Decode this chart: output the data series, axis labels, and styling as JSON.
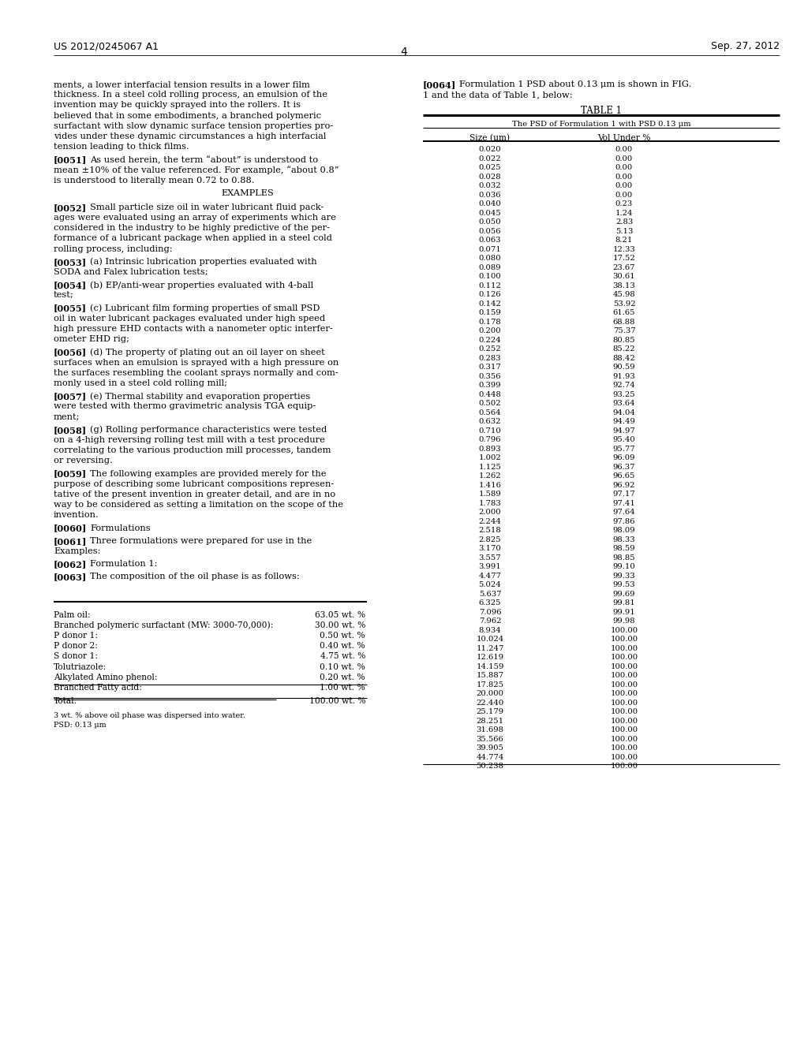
{
  "page_number": "4",
  "patent_number": "US 2012/0245067 A1",
  "patent_date": "Sep. 27, 2012",
  "left_paragraphs": [
    {
      "type": "body",
      "text": "ments, a lower interfacial tension results in a lower film\nthickness. In a steel cold rolling process, an emulsion of the\ninvention may be quickly sprayed into the rollers. It is\nbelieved that in some embodiments, a branched polymeric\nsurfactant with slow dynamic surface tension properties pro-\nvides under these dynamic circumstances a high interfacial\ntension leading to thick films."
    },
    {
      "type": "para",
      "num": "[0051]",
      "text": "As used herein, the term “about” is understood to\nmean ±10% of the value referenced. For example, “about 0.8”\nis understood to literally mean 0.72 to 0.88."
    },
    {
      "type": "center",
      "text": "EXAMPLES"
    },
    {
      "type": "para",
      "num": "[0052]",
      "text": "Small particle size oil in water lubricant fluid pack-\nages were evaluated using an array of experiments which are\nconsidered in the industry to be highly predictive of the per-\nformance of a lubricant package when applied in a steel cold\nrolling process, including:"
    },
    {
      "type": "para",
      "num": "[0053]",
      "text": "(a) Intrinsic lubrication properties evaluated with\nSODA and Falex lubrication tests;"
    },
    {
      "type": "para",
      "num": "[0054]",
      "text": "(b) EP/anti-wear properties evaluated with 4-ball\ntest;"
    },
    {
      "type": "para",
      "num": "[0055]",
      "text": "(c) Lubricant film forming properties of small PSD\noil in water lubricant packages evaluated under high speed\nhigh pressure EHD contacts with a nanometer optic interfer-\nometer EHD rig;"
    },
    {
      "type": "para",
      "num": "[0056]",
      "text": "(d) The property of plating out an oil layer on sheet\nsurfaces when an emulsion is sprayed with a high pressure on\nthe surfaces resembling the coolant sprays normally and com-\nmonly used in a steel cold rolling mill;"
    },
    {
      "type": "para",
      "num": "[0057]",
      "text": "(e) Thermal stability and evaporation properties\nwere tested with thermo gravimetric analysis TGA equip-\nment;"
    },
    {
      "type": "para",
      "num": "[0058]",
      "text": "(g) Rolling performance characteristics were tested\non a 4-high reversing rolling test mill with a test procedure\ncorrelating to the various production mill processes, tandem\nor reversing."
    },
    {
      "type": "para",
      "num": "[0059]",
      "text": "The following examples are provided merely for the\npurpose of describing some lubricant compositions represen-\ntative of the present invention in greater detail, and are in no\nway to be considered as setting a limitation on the scope of the\ninvention."
    },
    {
      "type": "para",
      "num": "[0060]",
      "text": "Formulations"
    },
    {
      "type": "para",
      "num": "[0061]",
      "text": "Three formulations were prepared for use in the\nExamples:"
    },
    {
      "type": "para",
      "num": "[0062]",
      "text": "Formulation 1:"
    },
    {
      "type": "para",
      "num": "[0063]",
      "text": "The composition of the oil phase is as follows:"
    }
  ],
  "right_intro": [
    {
      "type": "para",
      "num": "[0064]",
      "text": "Formulation 1 PSD about 0.13 μm is shown in FIG.\n1 and the data of Table 1, below:"
    }
  ],
  "table_title": "TABLE 1",
  "table_subtitle": "The PSD of Formulation 1 with PSD 0.13 μm",
  "col1_header": "Size (μm)",
  "col2_header": "Vol Under %",
  "table_data": [
    [
      0.02,
      0.0
    ],
    [
      0.022,
      0.0
    ],
    [
      0.025,
      0.0
    ],
    [
      0.028,
      0.0
    ],
    [
      0.032,
      0.0
    ],
    [
      0.036,
      0.0
    ],
    [
      0.04,
      0.23
    ],
    [
      0.045,
      1.24
    ],
    [
      0.05,
      2.83
    ],
    [
      0.056,
      5.13
    ],
    [
      0.063,
      8.21
    ],
    [
      0.071,
      12.33
    ],
    [
      0.08,
      17.52
    ],
    [
      0.089,
      23.67
    ],
    [
      0.1,
      30.61
    ],
    [
      0.112,
      38.13
    ],
    [
      0.126,
      45.98
    ],
    [
      0.142,
      53.92
    ],
    [
      0.159,
      61.65
    ],
    [
      0.178,
      68.88
    ],
    [
      0.2,
      75.37
    ],
    [
      0.224,
      80.85
    ],
    [
      0.252,
      85.22
    ],
    [
      0.283,
      88.42
    ],
    [
      0.317,
      90.59
    ],
    [
      0.356,
      91.93
    ],
    [
      0.399,
      92.74
    ],
    [
      0.448,
      93.25
    ],
    [
      0.502,
      93.64
    ],
    [
      0.564,
      94.04
    ],
    [
      0.632,
      94.49
    ],
    [
      0.71,
      94.97
    ],
    [
      0.796,
      95.4
    ],
    [
      0.893,
      95.77
    ],
    [
      1.002,
      96.09
    ],
    [
      1.125,
      96.37
    ],
    [
      1.262,
      96.65
    ],
    [
      1.416,
      96.92
    ],
    [
      1.589,
      97.17
    ],
    [
      1.783,
      97.41
    ],
    [
      2.0,
      97.64
    ],
    [
      2.244,
      97.86
    ],
    [
      2.518,
      98.09
    ],
    [
      2.825,
      98.33
    ],
    [
      3.17,
      98.59
    ],
    [
      3.557,
      98.85
    ],
    [
      3.991,
      99.1
    ],
    [
      4.477,
      99.33
    ],
    [
      5.024,
      99.53
    ],
    [
      5.637,
      99.69
    ],
    [
      6.325,
      99.81
    ],
    [
      7.096,
      99.91
    ],
    [
      7.962,
      99.98
    ],
    [
      8.934,
      100.0
    ],
    [
      10.024,
      100.0
    ],
    [
      11.247,
      100.0
    ],
    [
      12.619,
      100.0
    ],
    [
      14.159,
      100.0
    ],
    [
      15.887,
      100.0
    ],
    [
      17.825,
      100.0
    ],
    [
      20.0,
      100.0
    ],
    [
      22.44,
      100.0
    ],
    [
      25.179,
      100.0
    ],
    [
      28.251,
      100.0
    ],
    [
      31.698,
      100.0
    ],
    [
      35.566,
      100.0
    ],
    [
      39.905,
      100.0
    ],
    [
      44.774,
      100.0
    ],
    [
      50.238,
      100.0
    ]
  ],
  "formulation_items": [
    [
      "Palm oil:",
      "63.05 wt. %"
    ],
    [
      "Branched polymeric surfactant (MW: 3000-70,000):",
      "30.00 wt. %"
    ],
    [
      "P donor 1:",
      "0.50 wt. %"
    ],
    [
      "P donor 2:",
      "0.40 wt. %"
    ],
    [
      "S donor 1:",
      "4.75 wt. %"
    ],
    [
      "Tolutriazole:",
      "0.10 wt. %"
    ],
    [
      "Alkylated Amino phenol:",
      "0.20 wt. %"
    ],
    [
      "Branched Fatty acid:",
      "1.00 wt. %"
    ],
    [
      "Total:",
      "100.00 wt. %"
    ]
  ],
  "footnotes": [
    "3 wt. % above oil phase was dispersed into water.",
    "PSD: 0.13 μm"
  ]
}
